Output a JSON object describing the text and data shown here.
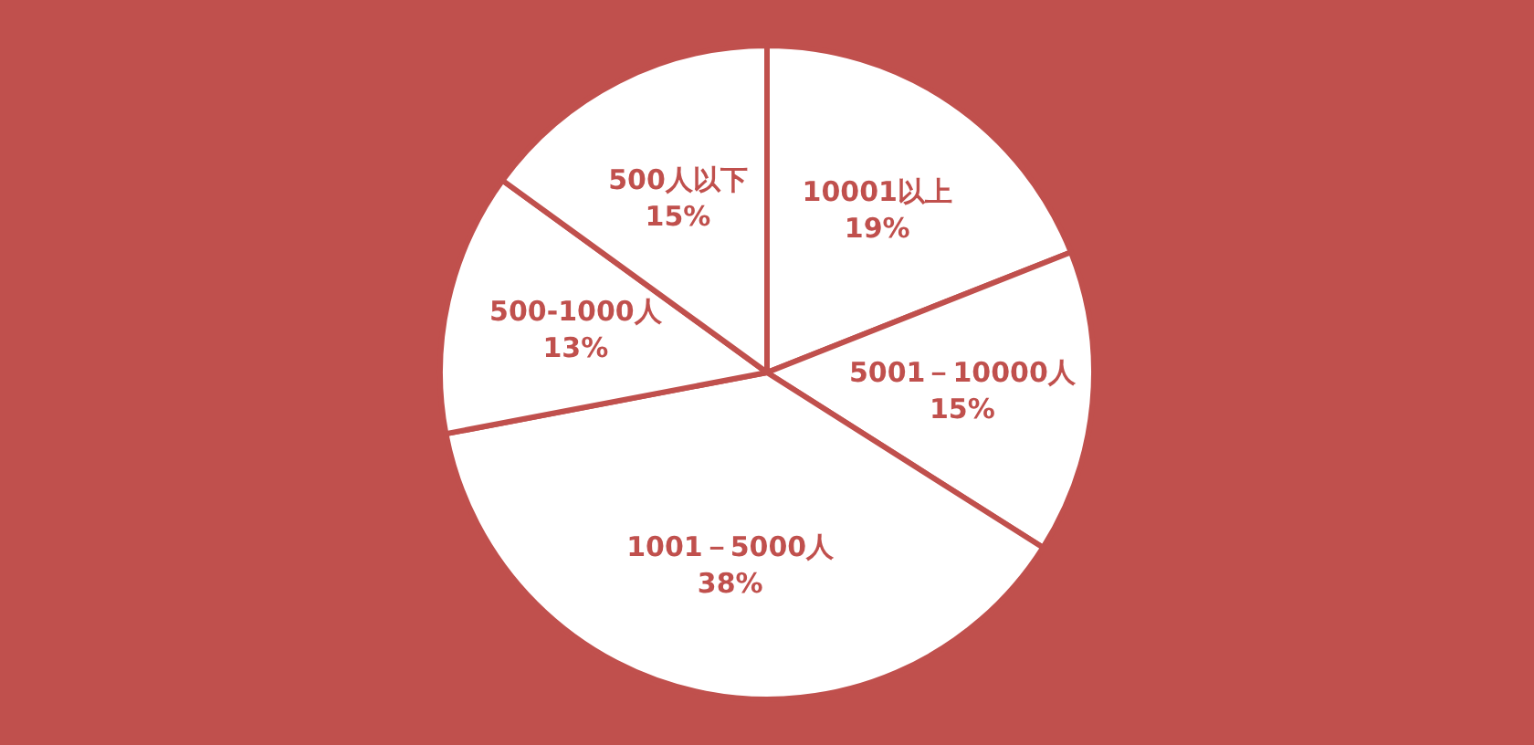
{
  "chart_data": {
    "type": "pie",
    "categories": [
      "10001以上",
      "5001－10000人",
      "1001－5000人",
      "500-1000人",
      "500人以下"
    ],
    "values": [
      19,
      15,
      38,
      13,
      15
    ],
    "colors": [
      "#ffffff",
      "#ffffff",
      "#ffffff",
      "#ffffff",
      "#ffffff"
    ],
    "value_labels": [
      "19%",
      "15%",
      "38%",
      "13%",
      "15%"
    ]
  }
}
